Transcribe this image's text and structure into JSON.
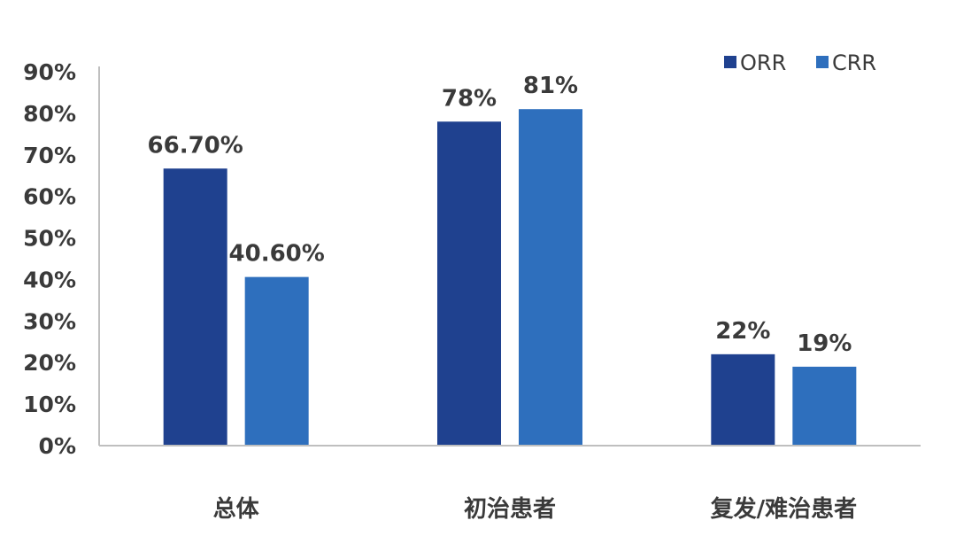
{
  "chart_data": {
    "type": "bar",
    "categories": [
      "总体",
      "初治患者",
      "复发/难治患者"
    ],
    "series": [
      {
        "name": "ORR",
        "values": [
          66.7,
          78,
          22
        ],
        "labels": [
          "66.70%",
          "78%",
          "22%"
        ],
        "color": "#1f418f"
      },
      {
        "name": "CRR",
        "values": [
          40.6,
          81,
          19
        ],
        "labels": [
          "40.60%",
          "81%",
          "19%"
        ],
        "color": "#2e6fbd"
      }
    ],
    "yticks": [
      "0%",
      "10%",
      "20%",
      "30%",
      "40%",
      "50%",
      "60%",
      "70%",
      "80%",
      "90%"
    ],
    "ylim": [
      0,
      90
    ],
    "grid": false,
    "legend_position": "top-right",
    "axis_color": "#bfbfbf"
  }
}
